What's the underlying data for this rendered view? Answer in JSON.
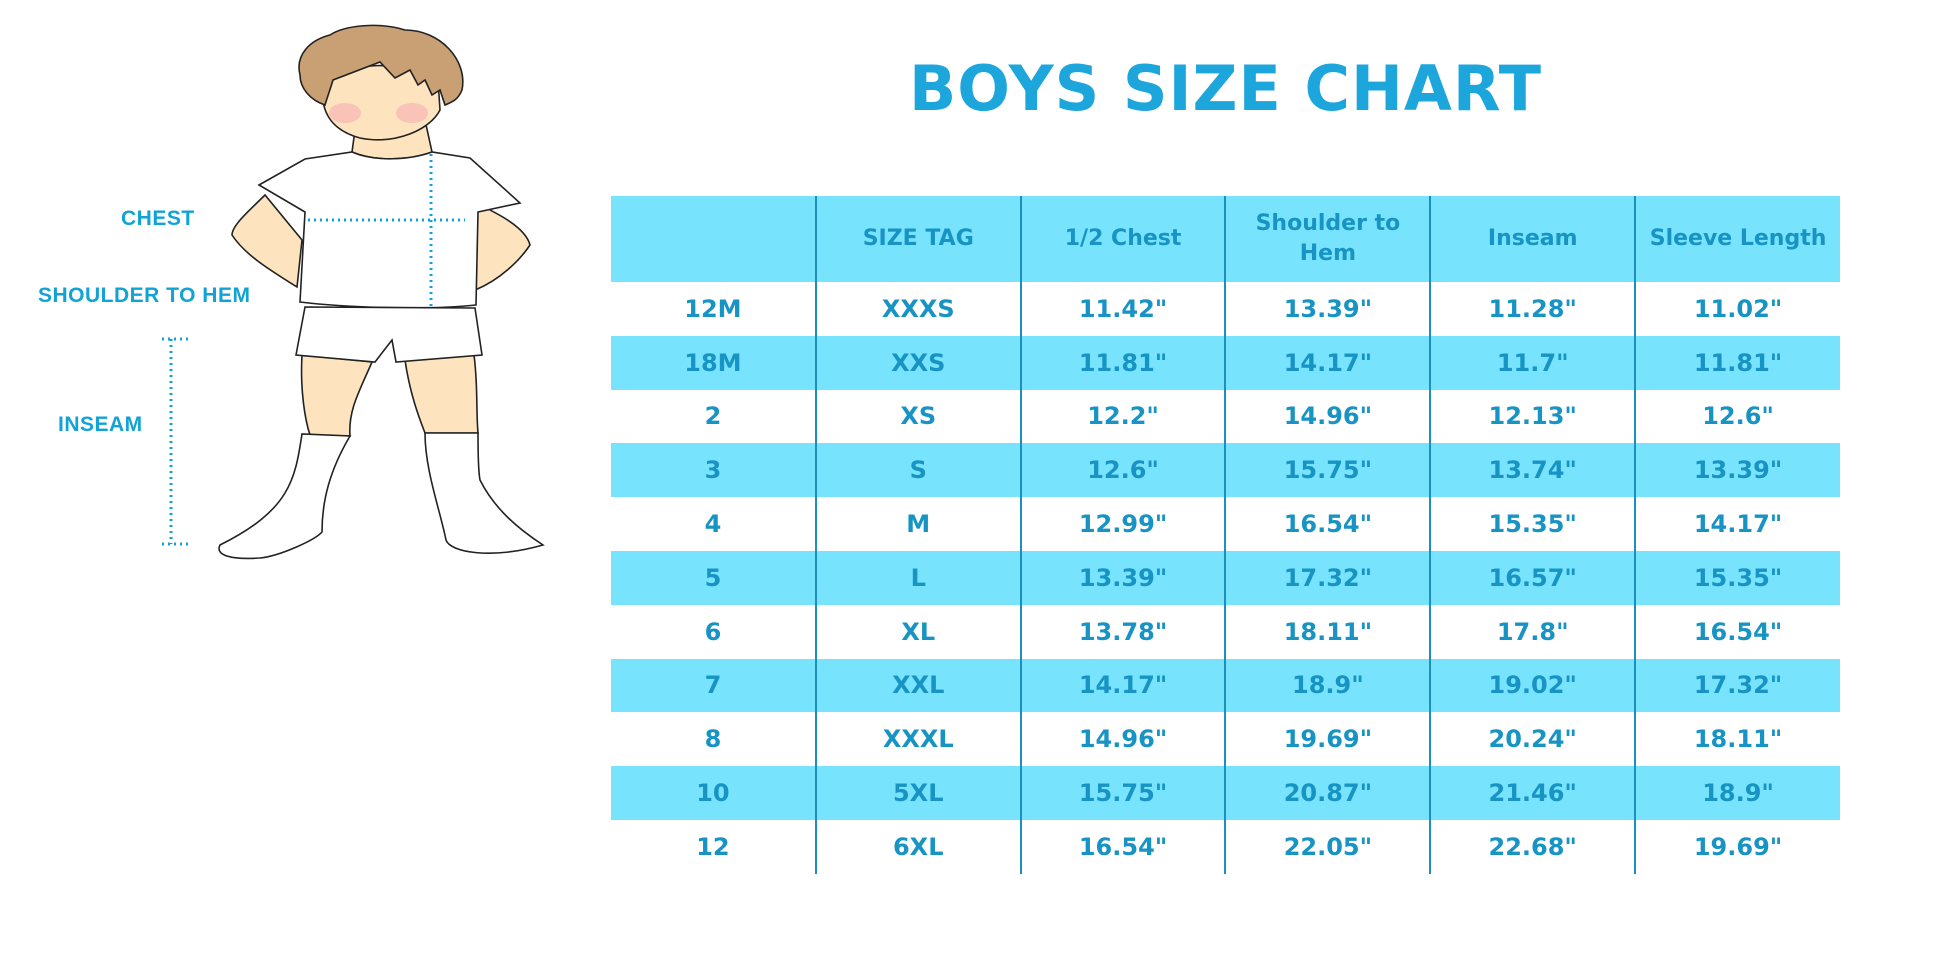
{
  "title": "BOYS SIZE CHART",
  "figure_labels": {
    "chest": "CHEST",
    "shoulder_to_hem": "SHOULDER TO HEM",
    "inseam": "INSEAM"
  },
  "colors": {
    "accent": "#1ca6dc",
    "row_highlight": "#77e3fc",
    "text": "#1793c4"
  },
  "table": {
    "headers": [
      "",
      "SIZE TAG",
      "1/2 Chest",
      "Shoulder to Hem",
      "Inseam",
      "Sleeve Length"
    ],
    "rows": [
      [
        "12M",
        "XXXS",
        "11.42\"",
        "13.39\"",
        "11.28\"",
        "11.02\""
      ],
      [
        "18M",
        "XXS",
        "11.81\"",
        "14.17\"",
        "11.7\"",
        "11.81\""
      ],
      [
        "2",
        "XS",
        "12.2\"",
        "14.96\"",
        "12.13\"",
        "12.6\""
      ],
      [
        "3",
        "S",
        "12.6\"",
        "15.75\"",
        "13.74\"",
        "13.39\""
      ],
      [
        "4",
        "M",
        "12.99\"",
        "16.54\"",
        "15.35\"",
        "14.17\""
      ],
      [
        "5",
        "L",
        "13.39\"",
        "17.32\"",
        "16.57\"",
        "15.35\""
      ],
      [
        "6",
        "XL",
        "13.78\"",
        "18.11\"",
        "17.8\"",
        "16.54\""
      ],
      [
        "7",
        "XXL",
        "14.17\"",
        "18.9\"",
        "19.02\"",
        "17.32\""
      ],
      [
        "8",
        "XXXL",
        "14.96\"",
        "19.69\"",
        "20.24\"",
        "18.11\""
      ],
      [
        "10",
        "5XL",
        "15.75\"",
        "20.87\"",
        "21.46\"",
        "18.9\""
      ],
      [
        "12",
        "6XL",
        "16.54\"",
        "22.05\"",
        "22.68\"",
        "19.69\""
      ]
    ]
  }
}
